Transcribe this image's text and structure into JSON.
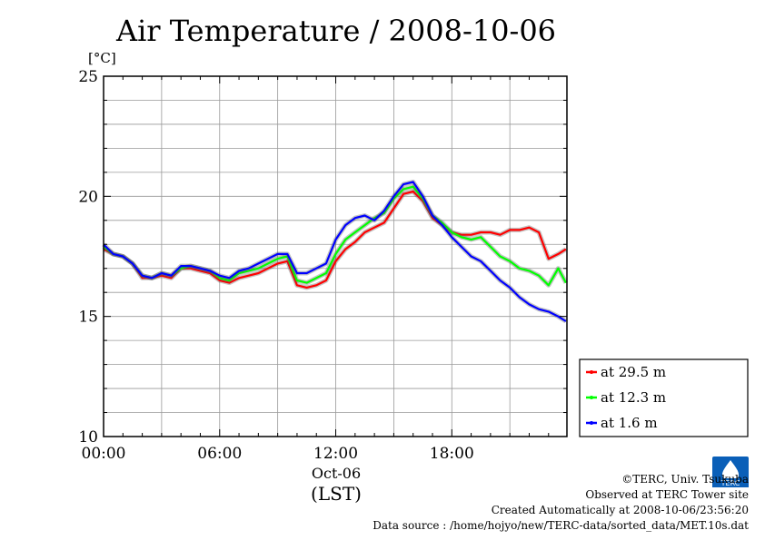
{
  "title": "Air Temperature / 2008-10-06",
  "unit_label": "[°C]",
  "x_date_label": "Oct-06",
  "x_tz_label": "(LST)",
  "credits": {
    "line1": "©TERC, Univ. Tsukuba",
    "line2": "Observed at TERC Tower site",
    "line3": "Created Automatically at 2008-10-06/23:56:20",
    "line4": "Data source : /home/hojyo/new/TERC-data/sorted_data/MET.10s.dat"
  },
  "logo_text": "TERC",
  "chart_data": {
    "type": "line",
    "xlim": [
      0,
      23.95
    ],
    "ylim": [
      10,
      25
    ],
    "grid": true,
    "x_ticks": [
      {
        "value": 0,
        "label": "00:00"
      },
      {
        "value": 6,
        "label": "06:00"
      },
      {
        "value": 12,
        "label": "12:00"
      },
      {
        "value": 18,
        "label": "18:00"
      }
    ],
    "y_ticks": [
      {
        "value": 10,
        "label": "10"
      },
      {
        "value": 15,
        "label": "15"
      },
      {
        "value": 20,
        "label": "20"
      },
      {
        "value": 25,
        "label": "25"
      }
    ],
    "legend_position": "right-bottom",
    "series": [
      {
        "name": "at 29.5 m",
        "color": "#ff0000",
        "x": [
          0,
          0.5,
          1,
          1.5,
          2,
          2.5,
          3,
          3.5,
          4,
          4.5,
          5,
          5.5,
          6,
          6.5,
          7,
          7.5,
          8,
          8.5,
          9,
          9.5,
          10,
          10.5,
          11,
          11.5,
          12,
          12.5,
          13,
          13.5,
          14,
          14.5,
          15,
          15.5,
          16,
          16.5,
          17,
          17.5,
          18,
          18.5,
          19,
          19.5,
          20,
          20.5,
          21,
          21.5,
          22,
          22.5,
          23,
          23.5,
          23.9
        ],
        "values": [
          17.8,
          17.6,
          17.5,
          17.2,
          16.6,
          16.6,
          16.7,
          16.6,
          17.0,
          17.0,
          16.9,
          16.8,
          16.5,
          16.4,
          16.6,
          16.7,
          16.8,
          17.0,
          17.2,
          17.3,
          16.3,
          16.2,
          16.3,
          16.5,
          17.3,
          17.8,
          18.1,
          18.5,
          18.7,
          18.9,
          19.5,
          20.1,
          20.2,
          19.8,
          19.1,
          18.8,
          18.5,
          18.4,
          18.4,
          18.5,
          18.5,
          18.4,
          18.6,
          18.6,
          18.7,
          18.5,
          17.4,
          17.6,
          17.8
        ]
      },
      {
        "name": "at 12.3 m",
        "color": "#00ff00",
        "x": [
          0,
          0.5,
          1,
          1.5,
          2,
          2.5,
          3,
          3.5,
          4,
          4.5,
          5,
          5.5,
          6,
          6.5,
          7,
          7.5,
          8,
          8.5,
          9,
          9.5,
          10,
          10.5,
          11,
          11.5,
          12,
          12.5,
          13,
          13.5,
          14,
          14.5,
          15,
          15.5,
          16,
          16.5,
          17,
          17.5,
          18,
          18.5,
          19,
          19.5,
          20,
          20.5,
          21,
          21.5,
          22,
          22.5,
          23,
          23.5,
          23.9
        ],
        "values": [
          17.9,
          17.6,
          17.5,
          17.2,
          16.7,
          16.6,
          16.8,
          16.7,
          17.0,
          17.1,
          17.0,
          16.9,
          16.6,
          16.5,
          16.8,
          16.9,
          17.0,
          17.2,
          17.4,
          17.5,
          16.5,
          16.4,
          16.6,
          16.8,
          17.6,
          18.2,
          18.5,
          18.8,
          19.1,
          19.3,
          19.9,
          20.3,
          20.4,
          19.9,
          19.2,
          18.9,
          18.5,
          18.3,
          18.2,
          18.3,
          17.9,
          17.5,
          17.3,
          17.0,
          16.9,
          16.7,
          16.3,
          17.0,
          16.4
        ]
      },
      {
        "name": "at 1.6 m",
        "color": "#0000ff",
        "x": [
          0,
          0.5,
          1,
          1.5,
          2,
          2.5,
          3,
          3.5,
          4,
          4.5,
          5,
          5.5,
          6,
          6.5,
          7,
          7.5,
          8,
          8.5,
          9,
          9.5,
          10,
          10.5,
          11,
          11.5,
          12,
          12.5,
          13,
          13.5,
          14,
          14.5,
          15,
          15.5,
          16,
          16.5,
          17,
          17.5,
          18,
          18.5,
          19,
          19.5,
          20,
          20.5,
          21,
          21.5,
          22,
          22.5,
          23,
          23.5,
          23.9
        ],
        "values": [
          18.0,
          17.6,
          17.5,
          17.2,
          16.7,
          16.6,
          16.8,
          16.7,
          17.1,
          17.1,
          17.0,
          16.9,
          16.7,
          16.6,
          16.9,
          17.0,
          17.2,
          17.4,
          17.6,
          17.6,
          16.8,
          16.8,
          17.0,
          17.2,
          18.2,
          18.8,
          19.1,
          19.2,
          19.0,
          19.4,
          20.0,
          20.5,
          20.6,
          20.0,
          19.2,
          18.8,
          18.3,
          17.9,
          17.5,
          17.3,
          16.9,
          16.5,
          16.2,
          15.8,
          15.5,
          15.3,
          15.2,
          15.0,
          14.8
        ]
      }
    ]
  }
}
